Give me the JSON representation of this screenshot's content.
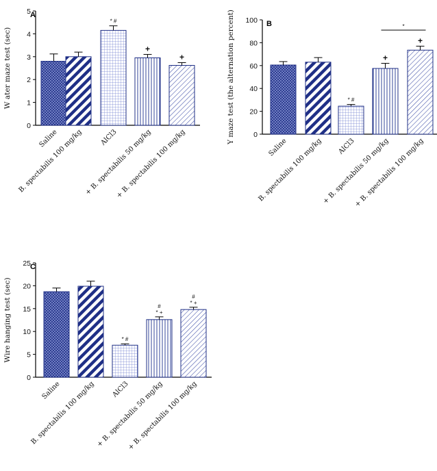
{
  "chart_data": [
    {
      "type": "bar",
      "panel": "A",
      "ylabel": "W ater maze test (sec)",
      "ylim": [
        0,
        5
      ],
      "yticks": [
        0,
        1,
        2,
        3,
        4,
        5
      ],
      "categories": [
        "Saline",
        "B. spectabilis 100 mg/kg",
        "AlCl3",
        "+ B. spectabilis 50 mg/kg",
        "+ B. spectabilis 100 mg/kg"
      ],
      "values": [
        2.8,
        3.0,
        4.15,
        2.95,
        2.62
      ],
      "errors": [
        0.32,
        0.2,
        0.2,
        0.15,
        0.12
      ],
      "annotations": [
        "",
        "",
        "* #",
        "+",
        "+"
      ]
    },
    {
      "type": "bar",
      "panel": "B",
      "ylabel": "Y maze test (the alternation percent)",
      "ylim": [
        0,
        100
      ],
      "yticks": [
        0,
        20,
        40,
        60,
        80,
        100
      ],
      "categories": [
        "Saline",
        "B. spectabilis 100 mg/kg",
        "AlCl3",
        "+ B. spectabilis 50 mg/kg",
        "+ B. spectabilis 100 mg/kg"
      ],
      "values": [
        60.5,
        63,
        24.5,
        57.5,
        73.5
      ],
      "errors": [
        3,
        4,
        1.5,
        4.5,
        3.5
      ],
      "annotations": [
        "",
        "",
        "* #",
        "+",
        "+"
      ],
      "bracket": {
        "from": 3,
        "to": 4,
        "label": "*"
      }
    },
    {
      "type": "bar",
      "panel": "C",
      "ylabel": "Wire hanging test (sec)",
      "ylim": [
        0,
        25
      ],
      "yticks": [
        0,
        5,
        10,
        15,
        20,
        25
      ],
      "categories": [
        "Saline",
        "B. spectabilis 100 mg/kg",
        "AlCl3",
        "+ B. spectabilis 50 mg/kg",
        "+ B. spectabilis 100 mg/kg"
      ],
      "values": [
        18.7,
        19.9,
        7.0,
        12.6,
        14.8
      ],
      "errors": [
        0.8,
        1.1,
        0.3,
        0.6,
        0.5
      ],
      "annotations": [
        "",
        "",
        "* #",
        "#\n* +",
        "#\n* +"
      ]
    }
  ]
}
